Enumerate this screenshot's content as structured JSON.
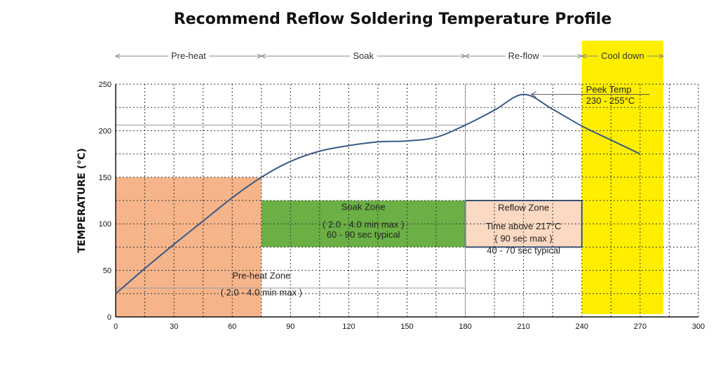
{
  "chart_data": {
    "type": "line",
    "title": "Recommend Reflow Soldering Temperature Profile",
    "xlabel": "",
    "ylabel": "TEMPERATURE (°C)",
    "xlim": [
      0,
      300
    ],
    "ylim": [
      0,
      250
    ],
    "x_ticks": [
      "0",
      "30",
      "60",
      "90",
      "120",
      "150",
      "180",
      "210",
      "240",
      "270",
      "300"
    ],
    "y_ticks": [
      "0",
      "50",
      "100",
      "150",
      "200",
      "250"
    ],
    "grid": true,
    "series": [
      {
        "color": "#3b5a86",
        "points": [
          [
            0,
            25
          ],
          [
            15,
            52
          ],
          [
            30,
            78
          ],
          [
            45,
            103
          ],
          [
            60,
            128
          ],
          [
            75,
            150
          ],
          [
            90,
            167
          ],
          [
            105,
            178
          ],
          [
            120,
            184
          ],
          [
            135,
            188
          ],
          [
            150,
            189
          ],
          [
            165,
            193
          ],
          [
            180,
            206
          ],
          [
            195,
            222
          ],
          [
            210,
            239
          ],
          [
            225,
            223
          ],
          [
            240,
            205
          ],
          [
            255,
            190
          ],
          [
            270,
            175
          ]
        ]
      }
    ],
    "phases": [
      {
        "label": "Pre-heat",
        "x_start": 0,
        "x_end": 75
      },
      {
        "label": "Soak",
        "x_start": 75,
        "x_end": 180
      },
      {
        "label": "Re-flow",
        "x_start": 180,
        "x_end": 240
      },
      {
        "label": "Cool down",
        "x_start": 240,
        "x_end": 282,
        "highlight": "#ffee00"
      }
    ],
    "zones": [
      {
        "name": "preheat",
        "label": "Pre-heat Zone",
        "detail": "( 2.0 - 4.0 min max )",
        "x_start": 0,
        "x_end": 75,
        "y_start": 0,
        "y_end": 150,
        "color": "#f6b48a"
      },
      {
        "name": "soak",
        "label": "Soak Zone",
        "detail": "( 2.0 - 4.0 min max )",
        "detail2": "60 - 90 sec typical",
        "x_start": 75,
        "x_end": 180,
        "y_start": 75,
        "y_end": 125,
        "color": "#6bb045"
      },
      {
        "name": "reflow",
        "label": "Reflow Zone",
        "detail": "Time above 217°C",
        "detail2": "( 90 sec max )",
        "detail3": "40 - 70 sec typical",
        "x_start": 180,
        "x_end": 240,
        "y_start": 75,
        "y_end": 125,
        "color": "#fbd9c2",
        "border": "#3b5a86"
      }
    ],
    "annotations": [
      {
        "text": "Peek Temp",
        "text2": "230 - 255°C"
      }
    ],
    "reference_lines": [
      {
        "y": 206,
        "x_end": 180
      },
      {
        "y": 31,
        "x_end": 180
      }
    ]
  }
}
